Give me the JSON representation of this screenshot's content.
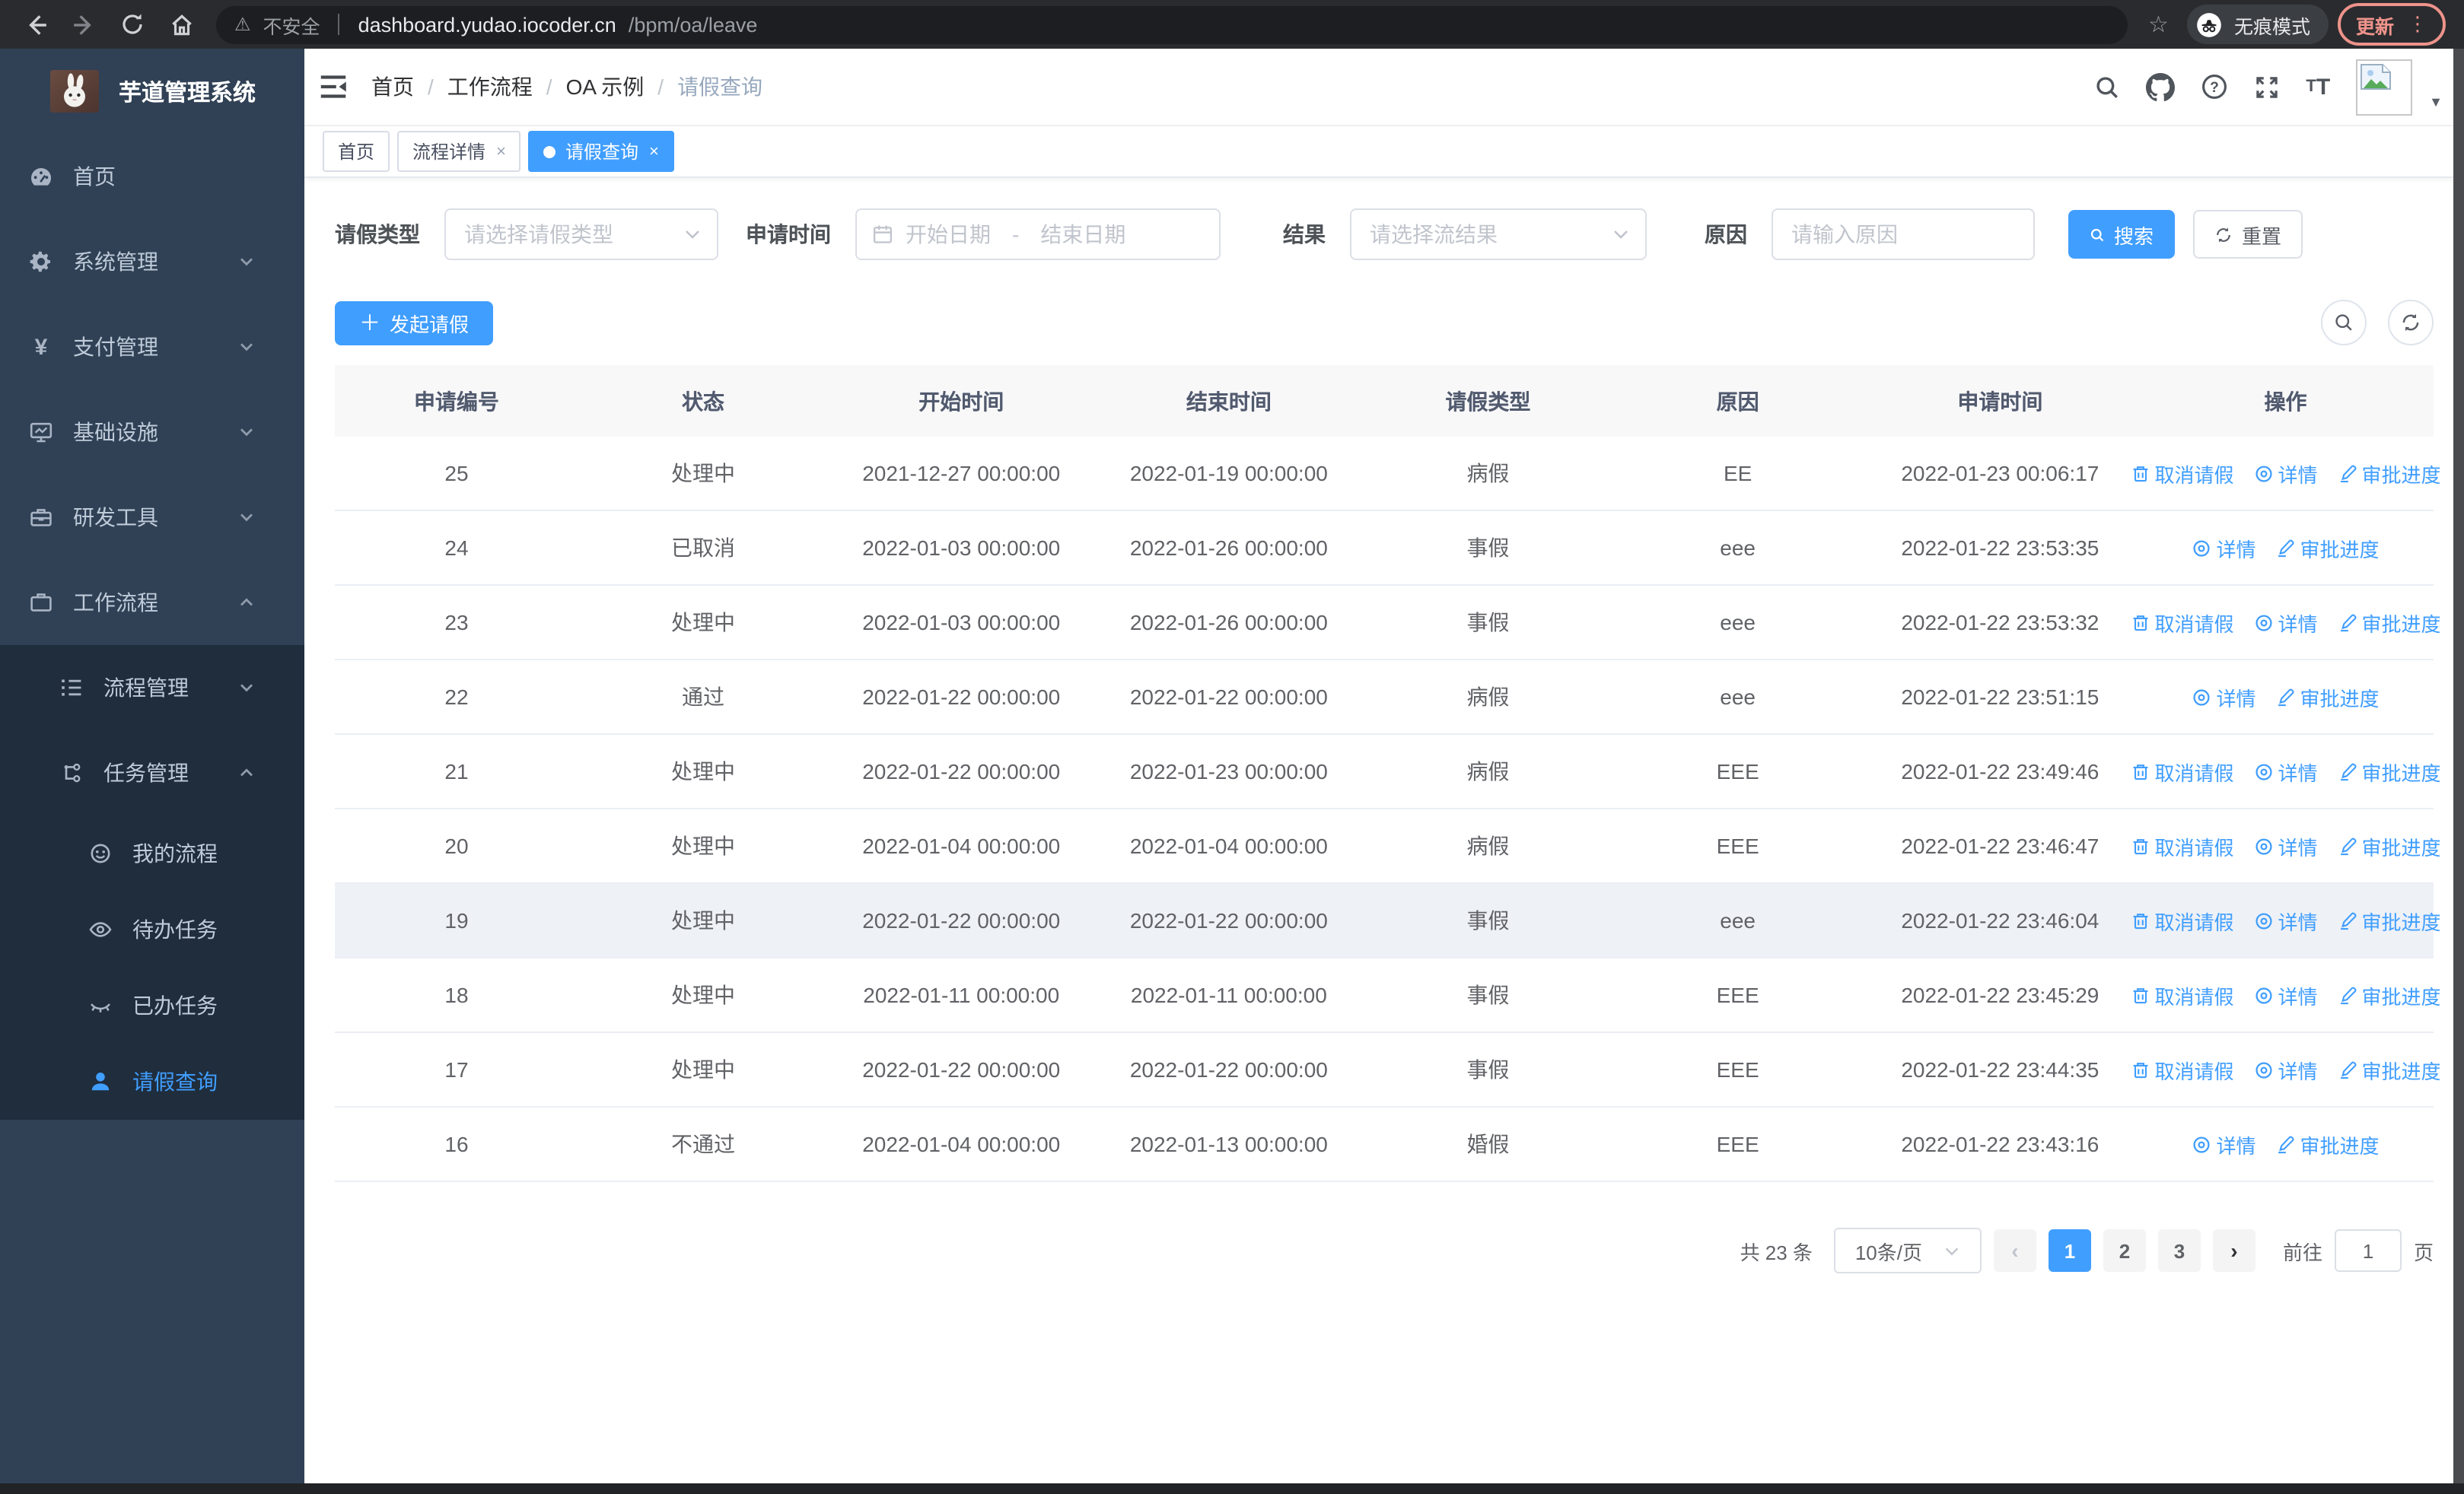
{
  "browser": {
    "security_label": "不安全",
    "url_host": "dashboard.yudao.iocoder.cn",
    "url_path": "/bpm/oa/leave",
    "incognito_label": "无痕模式",
    "update_label": "更新"
  },
  "colors": {
    "accent": "#409eff",
    "sidebar_bg": "#304156",
    "submenu_bg": "#1f2d3d",
    "update_red": "#ee938b"
  },
  "sidebar": {
    "title": "芋道管理系统",
    "items": [
      {
        "label": "首页",
        "icon": "dashboard-icon",
        "level": 0,
        "chevron": "",
        "submenu": false,
        "active": false
      },
      {
        "label": "系统管理",
        "icon": "gear-icon",
        "level": 0,
        "chevron": "down",
        "submenu": false,
        "active": false
      },
      {
        "label": "支付管理",
        "icon": "yen-icon",
        "level": 0,
        "chevron": "down",
        "submenu": false,
        "active": false
      },
      {
        "label": "基础设施",
        "icon": "monitor-icon",
        "level": 0,
        "chevron": "down",
        "submenu": false,
        "active": false
      },
      {
        "label": "研发工具",
        "icon": "toolbox-icon",
        "level": 0,
        "chevron": "down",
        "submenu": false,
        "active": false
      },
      {
        "label": "工作流程",
        "icon": "briefcase-icon",
        "level": 0,
        "chevron": "up",
        "submenu": false,
        "active": false
      },
      {
        "label": "流程管理",
        "icon": "list-tree-icon",
        "level": 1,
        "chevron": "down",
        "submenu": true,
        "active": false
      },
      {
        "label": "任务管理",
        "icon": "flow-icon",
        "level": 1,
        "chevron": "up",
        "submenu": true,
        "active": false
      },
      {
        "label": "我的流程",
        "icon": "face-icon",
        "level": 2,
        "chevron": "",
        "submenu": true,
        "active": false
      },
      {
        "label": "待办任务",
        "icon": "eye-open-icon",
        "level": 2,
        "chevron": "",
        "submenu": true,
        "active": false
      },
      {
        "label": "已办任务",
        "icon": "eye-closed-icon",
        "level": 2,
        "chevron": "",
        "submenu": true,
        "active": false
      },
      {
        "label": "请假查询",
        "icon": "user-icon",
        "level": 2,
        "chevron": "",
        "submenu": true,
        "active": true
      }
    ]
  },
  "navbar": {
    "breadcrumb": [
      "首页",
      "工作流程",
      "OA 示例",
      "请假查询"
    ]
  },
  "tabs": [
    {
      "label": "首页",
      "closable": false,
      "active": false
    },
    {
      "label": "流程详情",
      "closable": true,
      "active": false
    },
    {
      "label": "请假查询",
      "closable": true,
      "active": true
    }
  ],
  "filters": {
    "leave_type_label": "请假类型",
    "leave_type_placeholder": "请选择请假类型",
    "apply_time_label": "申请时间",
    "start_date_placeholder": "开始日期",
    "range_separator": "-",
    "end_date_placeholder": "结束日期",
    "result_label": "结果",
    "result_placeholder": "请选择流结果",
    "reason_label": "原因",
    "reason_placeholder": "请输入原因",
    "search_label": "搜索",
    "reset_label": "重置"
  },
  "toolbar": {
    "create_label": "发起请假"
  },
  "table": {
    "columns": [
      "申请编号",
      "状态",
      "开始时间",
      "结束时间",
      "请假类型",
      "原因",
      "申请时间",
      "操作"
    ],
    "action_labels": {
      "cancel": "取消请假",
      "detail": "详情",
      "progress": "审批进度"
    },
    "rows": [
      {
        "id": "25",
        "status": "处理中",
        "start": "2021-12-27 00:00:00",
        "end": "2022-01-19 00:00:00",
        "type": "病假",
        "reason": "EE",
        "applied": "2022-01-23 00:06:17",
        "cancellable": true,
        "highlighted": false
      },
      {
        "id": "24",
        "status": "已取消",
        "start": "2022-01-03 00:00:00",
        "end": "2022-01-26 00:00:00",
        "type": "事假",
        "reason": "eee",
        "applied": "2022-01-22 23:53:35",
        "cancellable": false,
        "highlighted": false
      },
      {
        "id": "23",
        "status": "处理中",
        "start": "2022-01-03 00:00:00",
        "end": "2022-01-26 00:00:00",
        "type": "事假",
        "reason": "eee",
        "applied": "2022-01-22 23:53:32",
        "cancellable": true,
        "highlighted": false
      },
      {
        "id": "22",
        "status": "通过",
        "start": "2022-01-22 00:00:00",
        "end": "2022-01-22 00:00:00",
        "type": "病假",
        "reason": "eee",
        "applied": "2022-01-22 23:51:15",
        "cancellable": false,
        "highlighted": false
      },
      {
        "id": "21",
        "status": "处理中",
        "start": "2022-01-22 00:00:00",
        "end": "2022-01-23 00:00:00",
        "type": "病假",
        "reason": "EEE",
        "applied": "2022-01-22 23:49:46",
        "cancellable": true,
        "highlighted": false
      },
      {
        "id": "20",
        "status": "处理中",
        "start": "2022-01-04 00:00:00",
        "end": "2022-01-04 00:00:00",
        "type": "病假",
        "reason": "EEE",
        "applied": "2022-01-22 23:46:47",
        "cancellable": true,
        "highlighted": false
      },
      {
        "id": "19",
        "status": "处理中",
        "start": "2022-01-22 00:00:00",
        "end": "2022-01-22 00:00:00",
        "type": "事假",
        "reason": "eee",
        "applied": "2022-01-22 23:46:04",
        "cancellable": true,
        "highlighted": true
      },
      {
        "id": "18",
        "status": "处理中",
        "start": "2022-01-11 00:00:00",
        "end": "2022-01-11 00:00:00",
        "type": "事假",
        "reason": "EEE",
        "applied": "2022-01-22 23:45:29",
        "cancellable": true,
        "highlighted": false
      },
      {
        "id": "17",
        "status": "处理中",
        "start": "2022-01-22 00:00:00",
        "end": "2022-01-22 00:00:00",
        "type": "事假",
        "reason": "EEE",
        "applied": "2022-01-22 23:44:35",
        "cancellable": true,
        "highlighted": false
      },
      {
        "id": "16",
        "status": "不通过",
        "start": "2022-01-04 00:00:00",
        "end": "2022-01-13 00:00:00",
        "type": "婚假",
        "reason": "EEE",
        "applied": "2022-01-22 23:43:16",
        "cancellable": false,
        "highlighted": false
      }
    ]
  },
  "pagination": {
    "total": "共 23 条",
    "page_size": "10条/页",
    "pages": [
      "1",
      "2",
      "3"
    ],
    "active": "1",
    "goto_label": "前往",
    "goto_value": "1",
    "unit_label": "页"
  }
}
